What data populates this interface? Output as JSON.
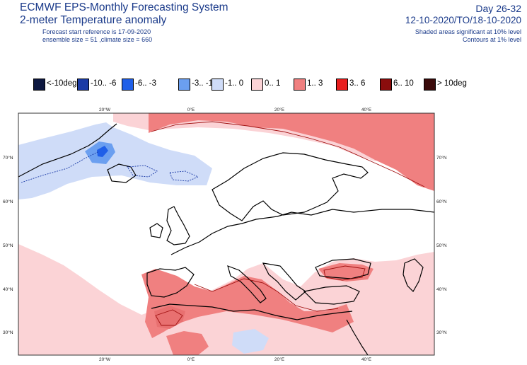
{
  "header": {
    "title_line1": "ECMWF EPS-Monthly Forecasting System",
    "title_line2": "2-meter Temperature anomaly",
    "forecast_start": "Forecast start reference is 17-09-2020",
    "ensemble_info": "ensemble size = 51  ,climate size = 660",
    "day_range": "Day 26-32",
    "date_range": "12-10-2020/TO/18-10-2020",
    "shading_note": "Shaded areas significant at 10% level",
    "contour_note": "Contours at 1% level"
  },
  "legend": [
    {
      "label": "<-10deg",
      "color": "#0d1840"
    },
    {
      "label": "-10.. -6",
      "color": "#1a3aa6"
    },
    {
      "label": "-6.. -3",
      "color": "#1f5fe8"
    },
    {
      "label": "-3.. -1",
      "color": "#6b9ff0"
    },
    {
      "label": "-1..  0",
      "color": "#cfdcf8"
    },
    {
      "label": "0..  1",
      "color": "#fbd3d6"
    },
    {
      "label": "1..  3",
      "color": "#f08080"
    },
    {
      "label": "3..  6",
      "color": "#e81e1e"
    },
    {
      "label": "6.. 10",
      "color": "#8a0d0d"
    },
    {
      "label": "> 10deg",
      "color": "#3a0a0a"
    }
  ],
  "map": {
    "top_lon_labels": [
      "20°W",
      "0°E",
      "20°E",
      "40°E"
    ],
    "bottom_lon_labels": [
      "20°W",
      "0°E",
      "20°E",
      "40°E"
    ],
    "left_lat_labels": [
      "70°N",
      "60°N",
      "50°N",
      "40°N",
      "30°N"
    ],
    "right_lat_labels": [
      "70°N",
      "60°N",
      "50°N",
      "40°N",
      "30°N"
    ]
  }
}
